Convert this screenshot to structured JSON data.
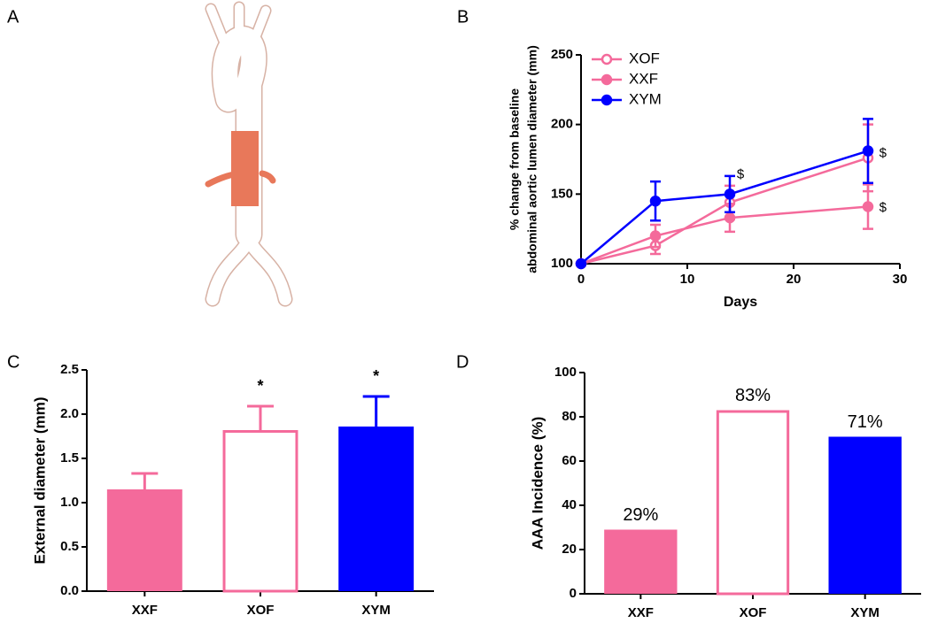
{
  "drawing_panel": "A",
  "chart_data": [
    {
      "type": "line",
      "panel": "B",
      "ylabel": [
        "% change from baseline",
        "abdominal aortic lumen diameter (mm)"
      ],
      "xlabel": "Days",
      "x": [
        0,
        7,
        14,
        27
      ],
      "series": [
        {
          "name": "XOF",
          "color": "#f46a9b",
          "filled": false,
          "values": [
            100,
            113,
            144,
            176
          ],
          "errors": [
            0,
            6,
            12,
            24
          ]
        },
        {
          "name": "XXF",
          "color": "#f46a9b",
          "filled": true,
          "values": [
            100,
            120,
            133,
            141
          ],
          "errors": [
            0,
            8,
            10,
            16
          ]
        },
        {
          "name": "XYM",
          "color": "#0000ff",
          "filled": true,
          "values": [
            100,
            145,
            150,
            181
          ],
          "errors": [
            0,
            14,
            13,
            23
          ]
        }
      ],
      "annotations": [
        {
          "text": "$",
          "x": 15,
          "y": 164
        },
        {
          "text": "$",
          "x": 28.4,
          "y": 179
        },
        {
          "text": "$",
          "x": 28.4,
          "y": 140
        }
      ],
      "xlim": [
        0,
        30
      ],
      "xticks": [
        0,
        10,
        20,
        30
      ],
      "ylim": [
        100,
        250
      ],
      "yticks": [
        100,
        150,
        200,
        250
      ],
      "legend": "upper-left"
    },
    {
      "type": "bar",
      "panel": "C",
      "ylabel": "External diameter (mm)",
      "categories": [
        "XXF",
        "XOF",
        "XYM"
      ],
      "values": [
        1.15,
        1.82,
        1.86
      ],
      "errors": [
        0.18,
        0.27,
        0.34
      ],
      "colors": [
        "#f46a9b",
        "#f46a9b",
        "#0000ff"
      ],
      "filled": [
        true,
        false,
        true
      ],
      "significance": [
        null,
        "*",
        "*"
      ],
      "ylim": [
        0,
        2.5
      ],
      "yticks": [
        {
          "value": 0,
          "label": "0.0"
        },
        0.5,
        {
          "value": 1,
          "label": "1.0"
        },
        1.5,
        {
          "value": 2,
          "label": "2.0"
        },
        2.5
      ]
    },
    {
      "type": "bar",
      "panel": "D",
      "ylabel": "AAA Incidence (%)",
      "categories": [
        "XXF",
        "XOF",
        "XYM"
      ],
      "values": [
        29,
        83,
        71
      ],
      "value_labels": [
        "29%",
        "83%",
        "71%"
      ],
      "colors": [
        "#f46a9b",
        "#f46a9b",
        "#0000ff"
      ],
      "filled": [
        true,
        false,
        true
      ],
      "ylim": [
        0,
        100
      ],
      "yticks": [
        0,
        20,
        40,
        60,
        80,
        100
      ]
    }
  ]
}
